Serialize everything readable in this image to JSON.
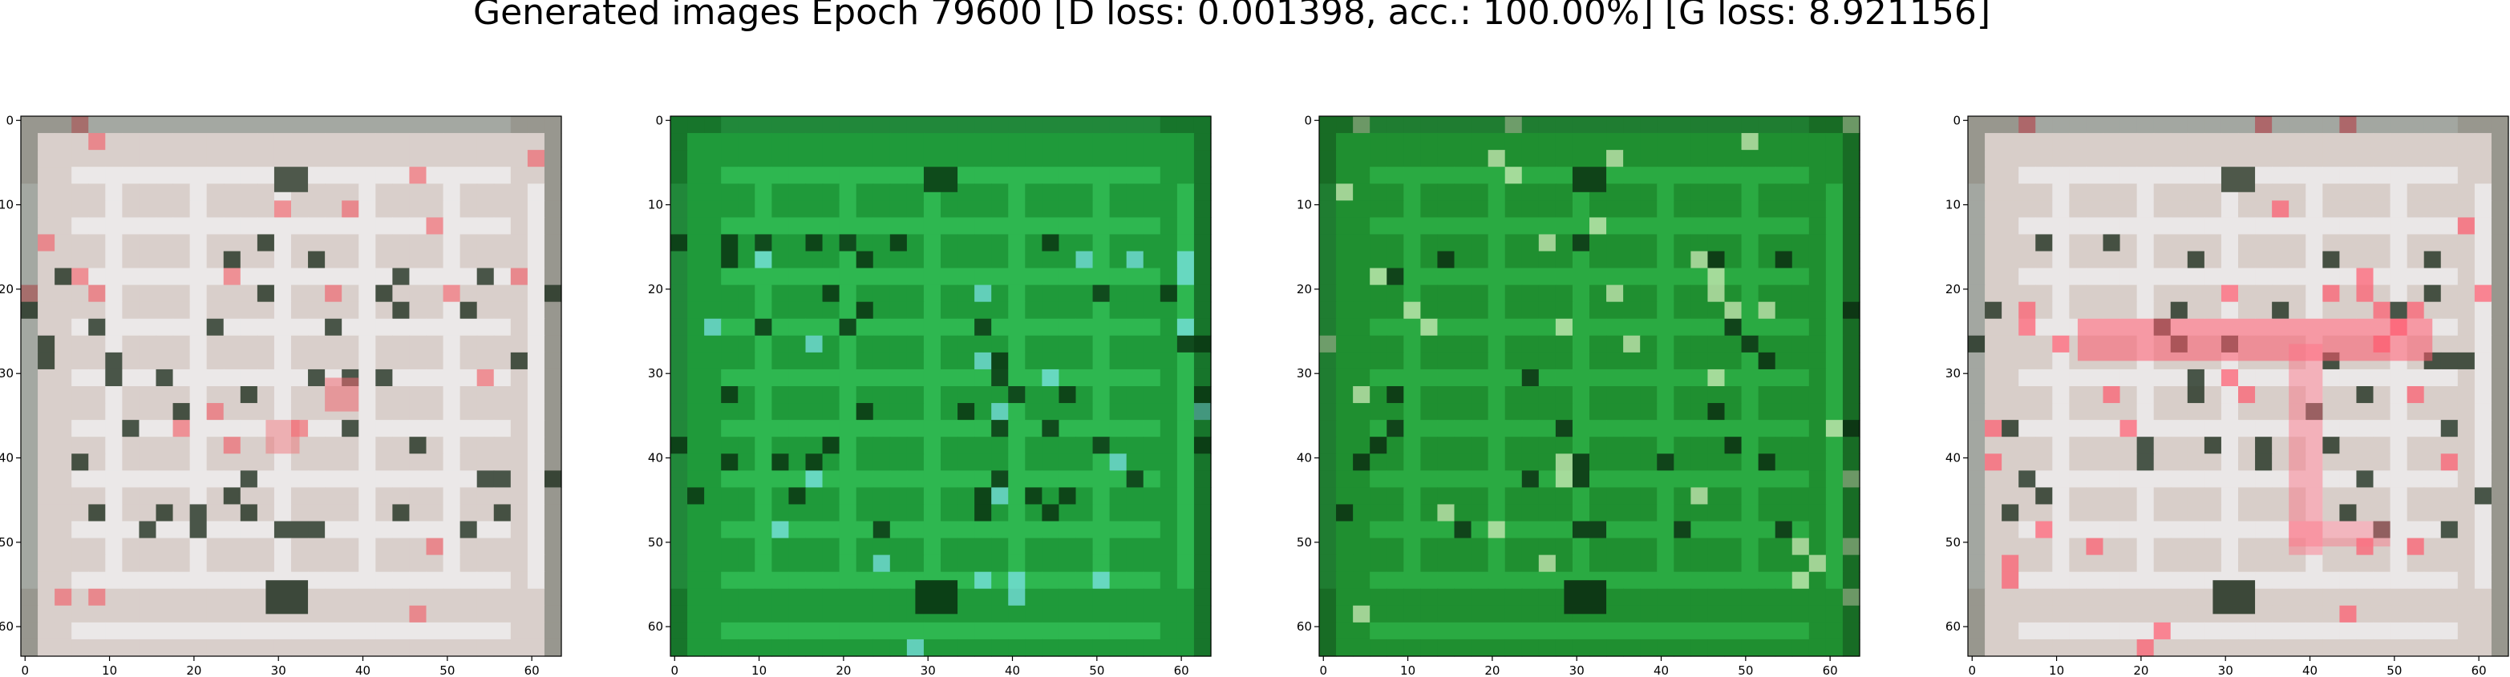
{
  "figure": {
    "title": "Generated images Epoch 79600 [D loss: 0.001398, acc.: 100.00%] [G loss: 8.921156]"
  },
  "panels": [
    {
      "name": "sample-1",
      "base_color": "#d9cfcb",
      "stripe_color": "#f2f2f4",
      "dark_color": "#203020",
      "accent_color": "#ef6a72"
    },
    {
      "name": "sample-2",
      "base_color": "#1f9a3a",
      "stripe_color": "#35c45a",
      "dark_color": "#083010",
      "accent_color": "#7fe6f0"
    },
    {
      "name": "sample-3",
      "base_color": "#1f8f30",
      "stripe_color": "#2fb64a",
      "dark_color": "#0a2a10",
      "accent_color": "#d8f0c0"
    },
    {
      "name": "sample-4",
      "base_color": "#d8cec9",
      "stripe_color": "#f2f2f4",
      "dark_color": "#203020",
      "accent_color": "#ff5a6e"
    }
  ],
  "axes": {
    "x_ticks": [
      "0",
      "10",
      "20",
      "30",
      "40",
      "50",
      "60"
    ],
    "y_ticks": [
      "0",
      "10",
      "20",
      "30",
      "40",
      "50",
      "60"
    ]
  }
}
